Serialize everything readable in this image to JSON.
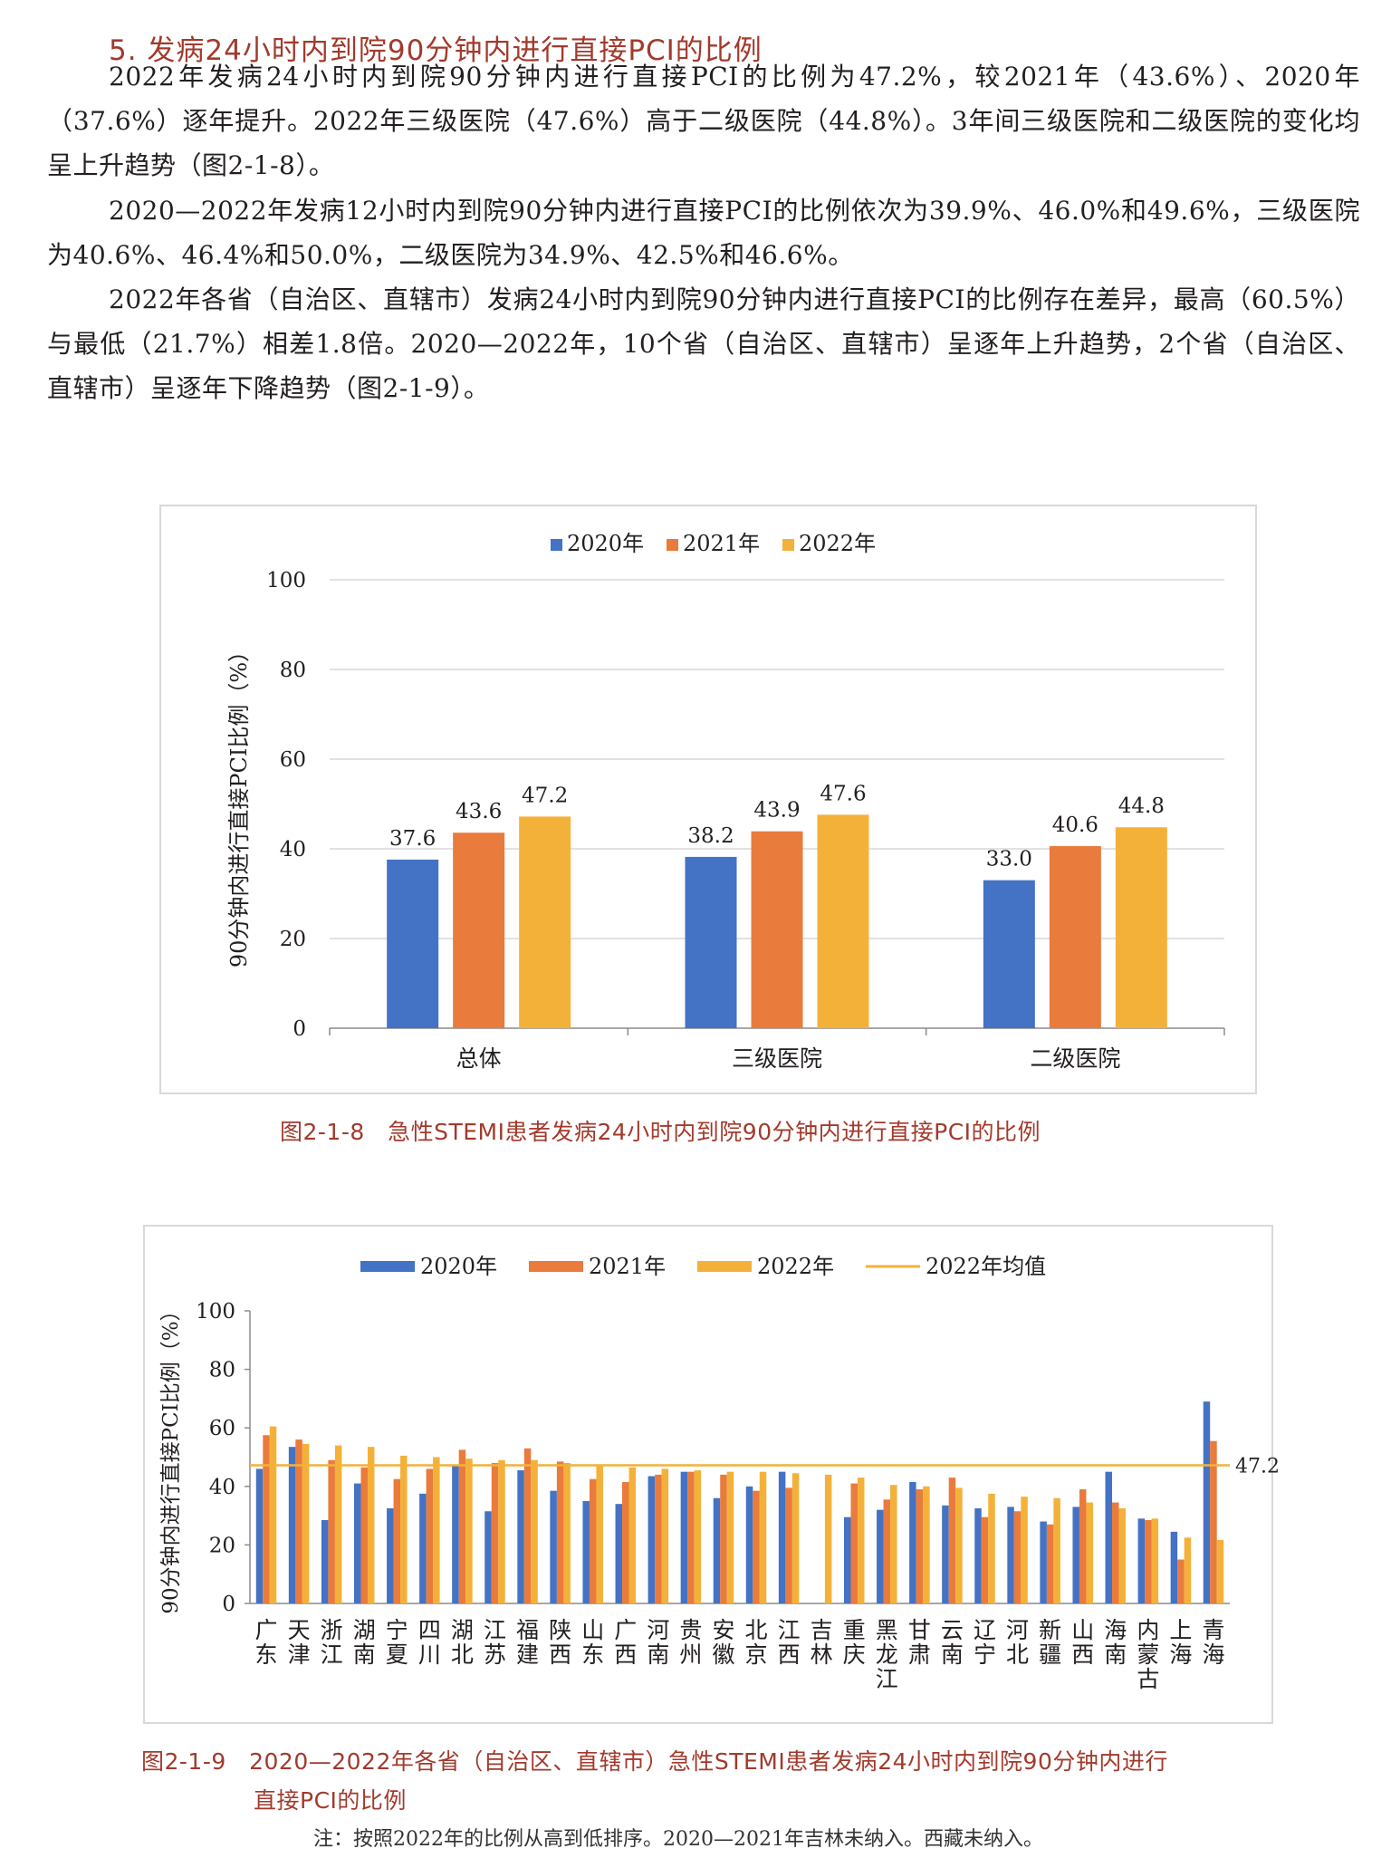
{
  "section": {
    "heading": "5. 发病24小时内到院90分钟内进行直接PCI的比例",
    "paragraphs": [
      "2022年发病24小时内到院90分钟内进行直接PCI的比例为47.2%，较2021年（43.6%）、2020年（37.6%）逐年提升。2022年三级医院（47.6%）高于二级医院（44.8%）。3年间三级医院和二级医院的变化均呈上升趋势（图2-1-8）。",
      "2020—2022年发病12小时内到院90分钟内进行直接PCI的比例依次为39.9%、46.0%和49.6%，三级医院为40.6%、46.4%和50.0%，二级医院为34.9%、42.5%和46.6%。",
      "2022年各省（自治区、直辖市）发病24小时内到院90分钟内进行直接PCI的比例存在差异，最高（60.5%）与最低（21.7%）相差1.8倍。2020—2022年，10个省（自治区、直辖市）呈逐年上升趋势，2个省（自治区、直辖市）呈逐年下降趋势（图2-1-9）。"
    ]
  },
  "figure1": {
    "caption_num": "图2-1-8",
    "caption_text": "急性STEMI患者发病24小时内到院90分钟内进行直接PCI的比例"
  },
  "figure2": {
    "caption_num": "图2-1-9",
    "caption_line1": "2020—2022年各省（自治区、直辖市）急性STEMI患者发病24小时内到院90分钟内进行",
    "caption_line2": "直接PCI的比例",
    "note": "注：按照2022年的比例从高到低排序。2020—2021年吉林未纳入。西藏未纳入。"
  },
  "chart_data": [
    {
      "type": "bar",
      "categories": [
        "总体",
        "三级医院",
        "二级医院"
      ],
      "series": [
        {
          "name": "2020年",
          "values": [
            37.6,
            38.2,
            33.0
          ],
          "labels": [
            "37.6",
            "38.2",
            "33.0"
          ],
          "color": "#4472c4"
        },
        {
          "name": "2021年",
          "values": [
            43.6,
            43.9,
            40.6
          ],
          "labels": [
            "43.6",
            "43.9",
            "40.6"
          ],
          "color": "#e97b3c"
        },
        {
          "name": "2022年",
          "values": [
            47.2,
            47.6,
            44.8
          ],
          "labels": [
            "47.2",
            "47.6",
            "44.8"
          ],
          "color": "#f4b13a"
        }
      ],
      "ylabel": "90分钟内进行直接PCI比例（%）",
      "ylim": [
        0,
        100
      ],
      "yticks": [
        "0",
        "20",
        "40",
        "60",
        "80",
        "100"
      ],
      "grid": true,
      "legend": "top-center"
    },
    {
      "type": "bar",
      "categories": [
        "广东",
        "天津",
        "浙江",
        "湖南",
        "宁夏",
        "四川",
        "湖北",
        "江苏",
        "福建",
        "陕西",
        "山东",
        "广西",
        "河南",
        "贵州",
        "安徽",
        "北京",
        "江西",
        "吉林",
        "重庆",
        "黑龙江",
        "甘肃",
        "云南",
        "辽宁",
        "河北",
        "新疆",
        "山西",
        "海南",
        "内蒙古",
        "上海",
        "青海"
      ],
      "series": [
        {
          "name": "2020年",
          "color": "#4472c4",
          "values": [
            46.0,
            53.5,
            28.5,
            41.0,
            32.5,
            37.5,
            47.0,
            31.5,
            45.5,
            38.5,
            35.0,
            34.0,
            43.5,
            45.0,
            36.0,
            40.0,
            45.0,
            null,
            29.5,
            32.0,
            41.5,
            33.5,
            32.5,
            33.0,
            28.0,
            33.0,
            45.0,
            29.0,
            24.5,
            69.0
          ]
        },
        {
          "name": "2021年",
          "color": "#e97b3c",
          "values": [
            57.5,
            56.0,
            49.0,
            46.5,
            42.5,
            46.0,
            52.5,
            48.0,
            53.0,
            48.5,
            42.5,
            41.5,
            44.0,
            45.0,
            44.0,
            38.5,
            39.5,
            null,
            41.0,
            35.5,
            39.0,
            43.0,
            29.5,
            31.5,
            27.0,
            39.0,
            34.5,
            28.5,
            15.0,
            55.5
          ]
        },
        {
          "name": "2022年",
          "color": "#f4b13a",
          "values": [
            60.5,
            54.5,
            54.0,
            53.5,
            50.5,
            50.0,
            49.5,
            49.0,
            49.0,
            48.0,
            47.0,
            46.5,
            46.0,
            45.5,
            45.0,
            45.0,
            44.5,
            44.0,
            43.0,
            40.5,
            40.0,
            39.5,
            37.5,
            36.5,
            36.0,
            34.5,
            32.5,
            29.0,
            22.5,
            21.7
          ]
        }
      ],
      "mean": {
        "name": "2022年均值",
        "value": 47.2,
        "label": "47.2",
        "color": "#f4b13a"
      },
      "ylabel": "90分钟内进行直接PCI比例（%）",
      "ylim": [
        0,
        100
      ],
      "yticks": [
        "0",
        "20",
        "40",
        "60",
        "80",
        "100"
      ],
      "grid": false,
      "legend": "top-center"
    }
  ]
}
